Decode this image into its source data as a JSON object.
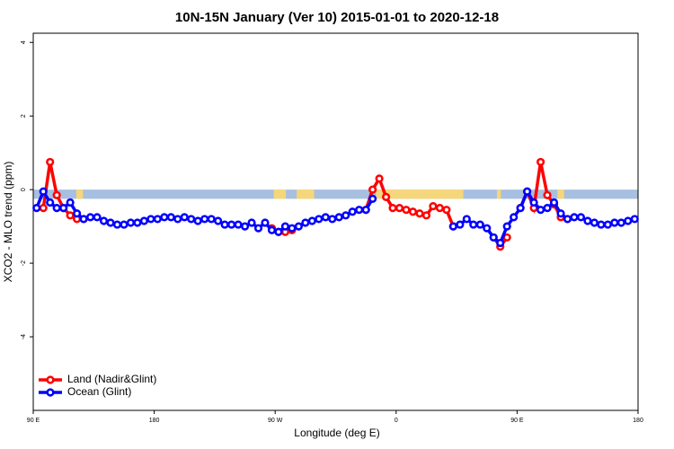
{
  "chart_data": {
    "type": "line",
    "title": "10N-15N January (Ver 10)   2015-01-01 to 2020-12-18",
    "xlabel": "Longitude (deg E)",
    "ylabel": "XCO2 - MLO trend (ppm)",
    "xlim": [
      90,
      540
    ],
    "ylim": [
      -6,
      4.25
    ],
    "xticks": [
      {
        "value": 90,
        "label": "90 E"
      },
      {
        "value": 180,
        "label": "180"
      },
      {
        "value": 270,
        "label": "90 W"
      },
      {
        "value": 360,
        "label": "0"
      },
      {
        "value": 450,
        "label": "90 E"
      },
      {
        "value": 540,
        "label": "180"
      }
    ],
    "yticks": [
      -4,
      -2,
      0,
      2,
      4
    ],
    "legend": "bottom-left",
    "band": {
      "ylim": [
        -0.25,
        0
      ],
      "color": "#a7bfe0",
      "land_color": "#f5d67a",
      "land_ranges": [
        [
          122,
          127
        ],
        [
          269,
          278
        ],
        [
          286,
          299
        ],
        [
          345,
          410
        ],
        [
          435,
          438
        ],
        [
          480,
          485
        ]
      ]
    },
    "x": [
      92.5,
      97.5,
      102.5,
      107.5,
      112.5,
      117.5,
      122.5,
      127.5,
      132.5,
      137.5,
      142.5,
      147.5,
      152.5,
      157.5,
      162.5,
      167.5,
      172.5,
      177.5,
      182.5,
      187.5,
      192.5,
      197.5,
      202.5,
      207.5,
      212.5,
      217.5,
      222.5,
      227.5,
      232.5,
      237.5,
      242.5,
      247.5,
      252.5,
      257.5,
      262.5,
      267.5,
      272.5,
      277.5,
      282.5,
      287.5,
      292.5,
      297.5,
      302.5,
      307.5,
      312.5,
      317.5,
      322.5,
      327.5,
      332.5,
      337.5,
      342.5,
      347.5,
      352.5,
      357.5,
      362.5,
      367.5,
      372.5,
      377.5,
      382.5,
      387.5,
      392.5,
      397.5,
      402.5,
      407.5,
      412.5,
      417.5,
      422.5,
      427.5,
      432.5,
      437.5,
      442.5,
      447.5,
      452.5,
      457.5,
      462.5,
      467.5,
      472.5,
      477.5,
      482.5,
      487.5,
      492.5,
      497.5,
      502.5,
      507.5,
      512.5,
      517.5,
      522.5,
      527.5,
      532.5,
      537.5
    ],
    "series": [
      {
        "name": "Land (Nadir&Glint)",
        "color": "#ff0000",
        "values": [
          null,
          -0.5,
          0.75,
          -0.15,
          -0.5,
          -0.7,
          -0.8,
          -0.8,
          null,
          null,
          null,
          null,
          null,
          null,
          null,
          null,
          null,
          null,
          null,
          null,
          null,
          null,
          null,
          null,
          null,
          null,
          null,
          null,
          null,
          null,
          null,
          null,
          null,
          null,
          null,
          -1.05,
          -1.15,
          -1.15,
          -1.1,
          null,
          null,
          null,
          null,
          null,
          null,
          null,
          null,
          null,
          null,
          -0.55,
          0,
          0.3,
          -0.2,
          -0.5,
          -0.5,
          -0.55,
          -0.6,
          -0.65,
          -0.7,
          -0.45,
          -0.5,
          -0.55,
          -1.0,
          null,
          null,
          null,
          null,
          null,
          -1.3,
          -1.55,
          -1.3,
          null,
          -0.5,
          -0.05,
          -0.5,
          0.75,
          -0.15,
          -0.4,
          -0.75,
          -0.8,
          null,
          null,
          null,
          null,
          null,
          null,
          null,
          null,
          null,
          null
        ]
      },
      {
        "name": "Ocean (Glint)",
        "color": "#0000ff",
        "values": [
          -0.5,
          -0.05,
          -0.35,
          -0.5,
          -0.5,
          -0.35,
          -0.65,
          -0.8,
          -0.75,
          -0.75,
          -0.85,
          -0.9,
          -0.95,
          -0.95,
          -0.9,
          -0.9,
          -0.85,
          -0.8,
          -0.8,
          -0.75,
          -0.75,
          -0.8,
          -0.75,
          -0.8,
          -0.85,
          -0.8,
          -0.8,
          -0.85,
          -0.95,
          -0.95,
          -0.95,
          -1.0,
          -0.9,
          -1.05,
          -0.9,
          -1.1,
          -1.15,
          -1.0,
          -1.05,
          -1.0,
          -0.9,
          -0.85,
          -0.8,
          -0.75,
          -0.8,
          -0.75,
          -0.7,
          -0.6,
          -0.55,
          -0.55,
          -0.25,
          null,
          null,
          null,
          null,
          null,
          null,
          null,
          null,
          null,
          null,
          null,
          -1.0,
          -0.95,
          -0.8,
          -0.95,
          -0.95,
          -1.05,
          -1.3,
          -1.45,
          -1.0,
          -0.75,
          -0.5,
          -0.05,
          -0.35,
          -0.55,
          -0.5,
          -0.35,
          -0.65,
          -0.8,
          -0.75,
          -0.75,
          -0.85,
          -0.9,
          -0.95,
          -0.95,
          -0.9,
          -0.9,
          -0.85,
          -0.8
        ]
      }
    ]
  }
}
